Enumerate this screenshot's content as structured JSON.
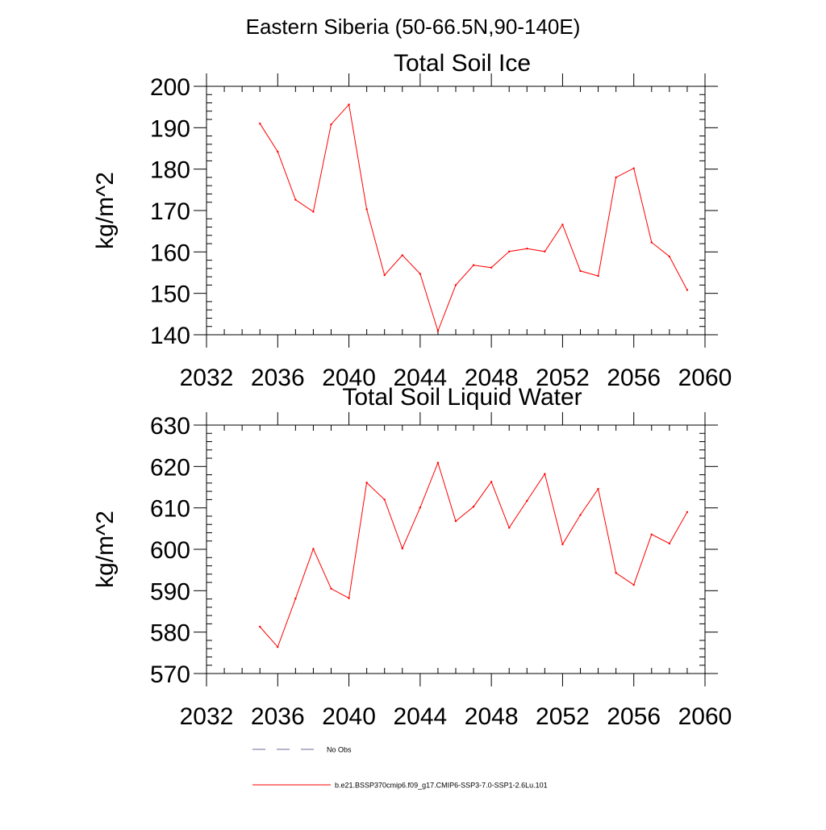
{
  "figure": {
    "title": "Eastern Siberia (50-66.5N,90-140E)"
  },
  "chart_data": [
    {
      "type": "line",
      "title": "Total Soil Ice",
      "xlabel": "",
      "ylabel": "kg/m^2",
      "xlim": [
        2032,
        2060
      ],
      "ylim": [
        140,
        200
      ],
      "xticks": [
        2032,
        2036,
        2040,
        2044,
        2048,
        2052,
        2056,
        2060
      ],
      "yticks": [
        140,
        150,
        160,
        170,
        180,
        190,
        200
      ],
      "x": [
        2035,
        2036,
        2037,
        2038,
        2039,
        2040,
        2041,
        2042,
        2043,
        2044,
        2045,
        2046,
        2047,
        2048,
        2049,
        2050,
        2051,
        2052,
        2053,
        2054,
        2055,
        2056,
        2057,
        2058,
        2059
      ],
      "series": [
        {
          "name": "b.e21.BSSP370cmip6.f09_g17.CMIP6-SSP3-7.0-SSP1-2.6Lu.101",
          "color": "#ff0000",
          "values": [
            191,
            184.2,
            172.6,
            169.7,
            190.8,
            195.6,
            170.3,
            154.4,
            159.2,
            154.7,
            140.9,
            152,
            156.8,
            156.2,
            160.1,
            160.8,
            160.1,
            166.6,
            155.4,
            154.2,
            178,
            180.2,
            162.3,
            158.9,
            150.8
          ]
        }
      ],
      "grid": false
    },
    {
      "type": "line",
      "title": "Total Soil Liquid Water",
      "xlabel": "",
      "ylabel": "kg/m^2",
      "xlim": [
        2032,
        2060
      ],
      "ylim": [
        570,
        630
      ],
      "xticks": [
        2032,
        2036,
        2040,
        2044,
        2048,
        2052,
        2056,
        2060
      ],
      "yticks": [
        570,
        580,
        590,
        600,
        610,
        620,
        630
      ],
      "x": [
        2035,
        2036,
        2037,
        2038,
        2039,
        2040,
        2041,
        2042,
        2043,
        2044,
        2045,
        2046,
        2047,
        2048,
        2049,
        2050,
        2051,
        2052,
        2053,
        2054,
        2055,
        2056,
        2057,
        2058,
        2059
      ],
      "series": [
        {
          "name": "b.e21.BSSP370cmip6.f09_g17.CMIP6-SSP3-7.0-SSP1-2.6Lu.101",
          "color": "#ff0000",
          "values": [
            581.3,
            576.4,
            588.1,
            600.1,
            590.5,
            588.2,
            616.1,
            612,
            600.2,
            610.1,
            620.9,
            606.8,
            610.3,
            616.3,
            605.2,
            611.7,
            618.2,
            601.2,
            608.3,
            614.6,
            594.3,
            591.4,
            603.6,
            601.4,
            609
          ]
        }
      ],
      "grid": false
    }
  ],
  "legend": {
    "placement": "bottom",
    "items": [
      {
        "label": "No Obs",
        "style": "dashed",
        "color": "#6a6a9a"
      },
      {
        "label": "b.e21.BSSP370cmip6.f09_g17.CMIP6-SSP3-7.0-SSP1-2.6Lu.101",
        "style": "solid",
        "color": "#ff0000"
      }
    ]
  }
}
